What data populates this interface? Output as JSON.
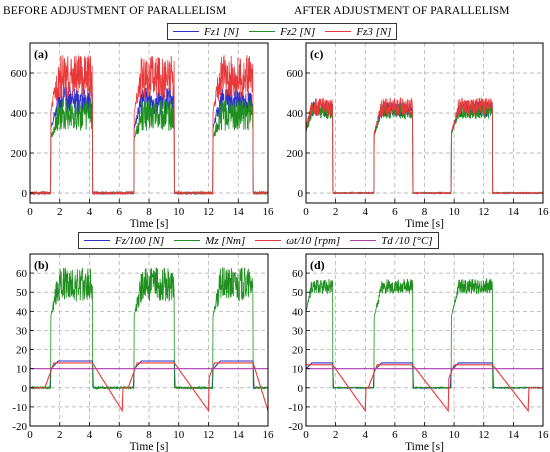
{
  "headings": {
    "left": "BEFORE ADJUSTMENT OF PARALLELISM",
    "right": "AFTER ADJUSTMENT OF PARALLELISM"
  },
  "legend_top": [
    {
      "label": "Fz1 [N]",
      "color": "#2e2ec8"
    },
    {
      "label": "Fz2 [N]",
      "color": "#1f8f1f"
    },
    {
      "label": "Fz3 [N]",
      "color": "#e8383a"
    }
  ],
  "legend_bottom": [
    {
      "label": "Fz/100 [N]",
      "color": "#2e2ec8"
    },
    {
      "label": "Mz [Nm]",
      "color": "#1f8f1f"
    },
    {
      "label": "ωt/10 [rpm]",
      "color": "#e8383a"
    },
    {
      "label": "Td /10 [°C]",
      "color": "#b23ab2"
    }
  ],
  "chart_data": [
    {
      "panel": "(a)",
      "type": "line",
      "xlabel": "Time [s]",
      "xlim": [
        0,
        16
      ],
      "ylim": [
        -50,
        750
      ],
      "xticks": [
        0,
        2,
        4,
        6,
        8,
        10,
        12,
        14,
        16
      ],
      "yticks": [
        0,
        200,
        400,
        600
      ],
      "grid": true,
      "series": [
        {
          "name": "Fz1 [N]",
          "color": "#2e2ec8",
          "segments": [
            [
              1.4,
              4.2
            ],
            [
              7.0,
              9.7
            ],
            [
              12.3,
              15.0
            ]
          ],
          "level": 460,
          "noise": 70
        },
        {
          "name": "Fz2 [N]",
          "color": "#1f8f1f",
          "segments": [
            [
              1.4,
              4.2
            ],
            [
              7.0,
              9.7
            ],
            [
              12.3,
              15.0
            ]
          ],
          "level": 390,
          "noise": 80
        },
        {
          "name": "Fz3 [N]",
          "color": "#e8383a",
          "segments": [
            [
              1.4,
              4.2
            ],
            [
              7.0,
              9.7
            ],
            [
              12.3,
              15.0
            ]
          ],
          "level": 580,
          "noise": 110
        }
      ]
    },
    {
      "panel": "(c)",
      "type": "line",
      "xlabel": "Time [s]",
      "xlim": [
        0,
        16
      ],
      "ylim": [
        -50,
        750
      ],
      "xticks": [
        0,
        2,
        4,
        6,
        8,
        10,
        12,
        14,
        16
      ],
      "yticks": [
        0,
        200,
        400,
        600
      ],
      "grid": true,
      "series": [
        {
          "name": "Fz1 [N]",
          "color": "#2e2ec8",
          "segments": [
            [
              -0.1,
              1.8
            ],
            [
              4.6,
              7.2
            ],
            [
              9.8,
              12.6
            ]
          ],
          "level": 420,
          "noise": 40
        },
        {
          "name": "Fz2 [N]",
          "color": "#1f8f1f",
          "segments": [
            [
              -0.1,
              1.8
            ],
            [
              4.6,
              7.2
            ],
            [
              9.8,
              12.6
            ]
          ],
          "level": 410,
          "noise": 40
        },
        {
          "name": "Fz3 [N]",
          "color": "#e8383a",
          "segments": [
            [
              -0.1,
              1.8
            ],
            [
              4.6,
              7.2
            ],
            [
              9.8,
              12.6
            ]
          ],
          "level": 430,
          "noise": 45
        }
      ]
    },
    {
      "panel": "(b)",
      "type": "line",
      "xlabel": "Time [s]",
      "xlim": [
        0,
        16
      ],
      "ylim": [
        -20,
        70
      ],
      "xticks": [
        0,
        2,
        4,
        6,
        8,
        10,
        12,
        14,
        16
      ],
      "yticks": [
        -20,
        -10,
        0,
        10,
        20,
        30,
        40,
        50,
        60
      ],
      "grid": true,
      "series": [
        {
          "name": "Fz/100 [N]",
          "color": "#2e2ec8",
          "segments": [
            [
              1.4,
              4.2
            ],
            [
              7.0,
              9.7
            ],
            [
              12.3,
              15.0
            ]
          ],
          "level": 14
        },
        {
          "name": "Mz [Nm]",
          "color": "#1f8f1f",
          "segments": [
            [
              1.4,
              4.2
            ],
            [
              7.0,
              9.7
            ],
            [
              12.3,
              15.0
            ]
          ],
          "level": 54,
          "noise": 9
        },
        {
          "name": "ωt/10 [rpm]",
          "color": "#e8383a",
          "ramps": [
            [
              1.0,
              1.6,
              4.2,
              6.2
            ],
            [
              6.6,
              7.2,
              9.7,
              12.0
            ],
            [
              11.8,
              12.4,
              15.0,
              16.0
            ]
          ],
          "level": 13
        },
        {
          "name": "Td /10 [°C]",
          "color": "#b23ab2",
          "constant": 10
        }
      ]
    },
    {
      "panel": "(d)",
      "type": "line",
      "xlabel": "Time [s]",
      "xlim": [
        0,
        16
      ],
      "ylim": [
        -20,
        70
      ],
      "xticks": [
        0,
        2,
        4,
        6,
        8,
        10,
        12,
        14,
        16
      ],
      "yticks": [
        -20,
        -10,
        0,
        10,
        20,
        30,
        40,
        50,
        60
      ],
      "grid": true,
      "series": [
        {
          "name": "Fz/100 [N]",
          "color": "#2e2ec8",
          "segments": [
            [
              -0.1,
              1.8
            ],
            [
              4.6,
              7.2
            ],
            [
              9.8,
              12.6
            ]
          ],
          "level": 13
        },
        {
          "name": "Mz [Nm]",
          "color": "#1f8f1f",
          "segments": [
            [
              -0.1,
              1.8
            ],
            [
              4.6,
              7.2
            ],
            [
              9.8,
              12.6
            ]
          ],
          "level": 53,
          "noise": 4
        },
        {
          "name": "ωt/10 [rpm]",
          "color": "#e8383a",
          "ramps": [
            [
              -0.5,
              0.0,
              1.8,
              4.0
            ],
            [
              4.2,
              4.8,
              7.2,
              9.6
            ],
            [
              9.4,
              10.0,
              12.6,
              15.0
            ]
          ],
          "level": 12
        },
        {
          "name": "Td /10 [°C]",
          "color": "#b23ab2",
          "constant": 10
        }
      ]
    }
  ]
}
